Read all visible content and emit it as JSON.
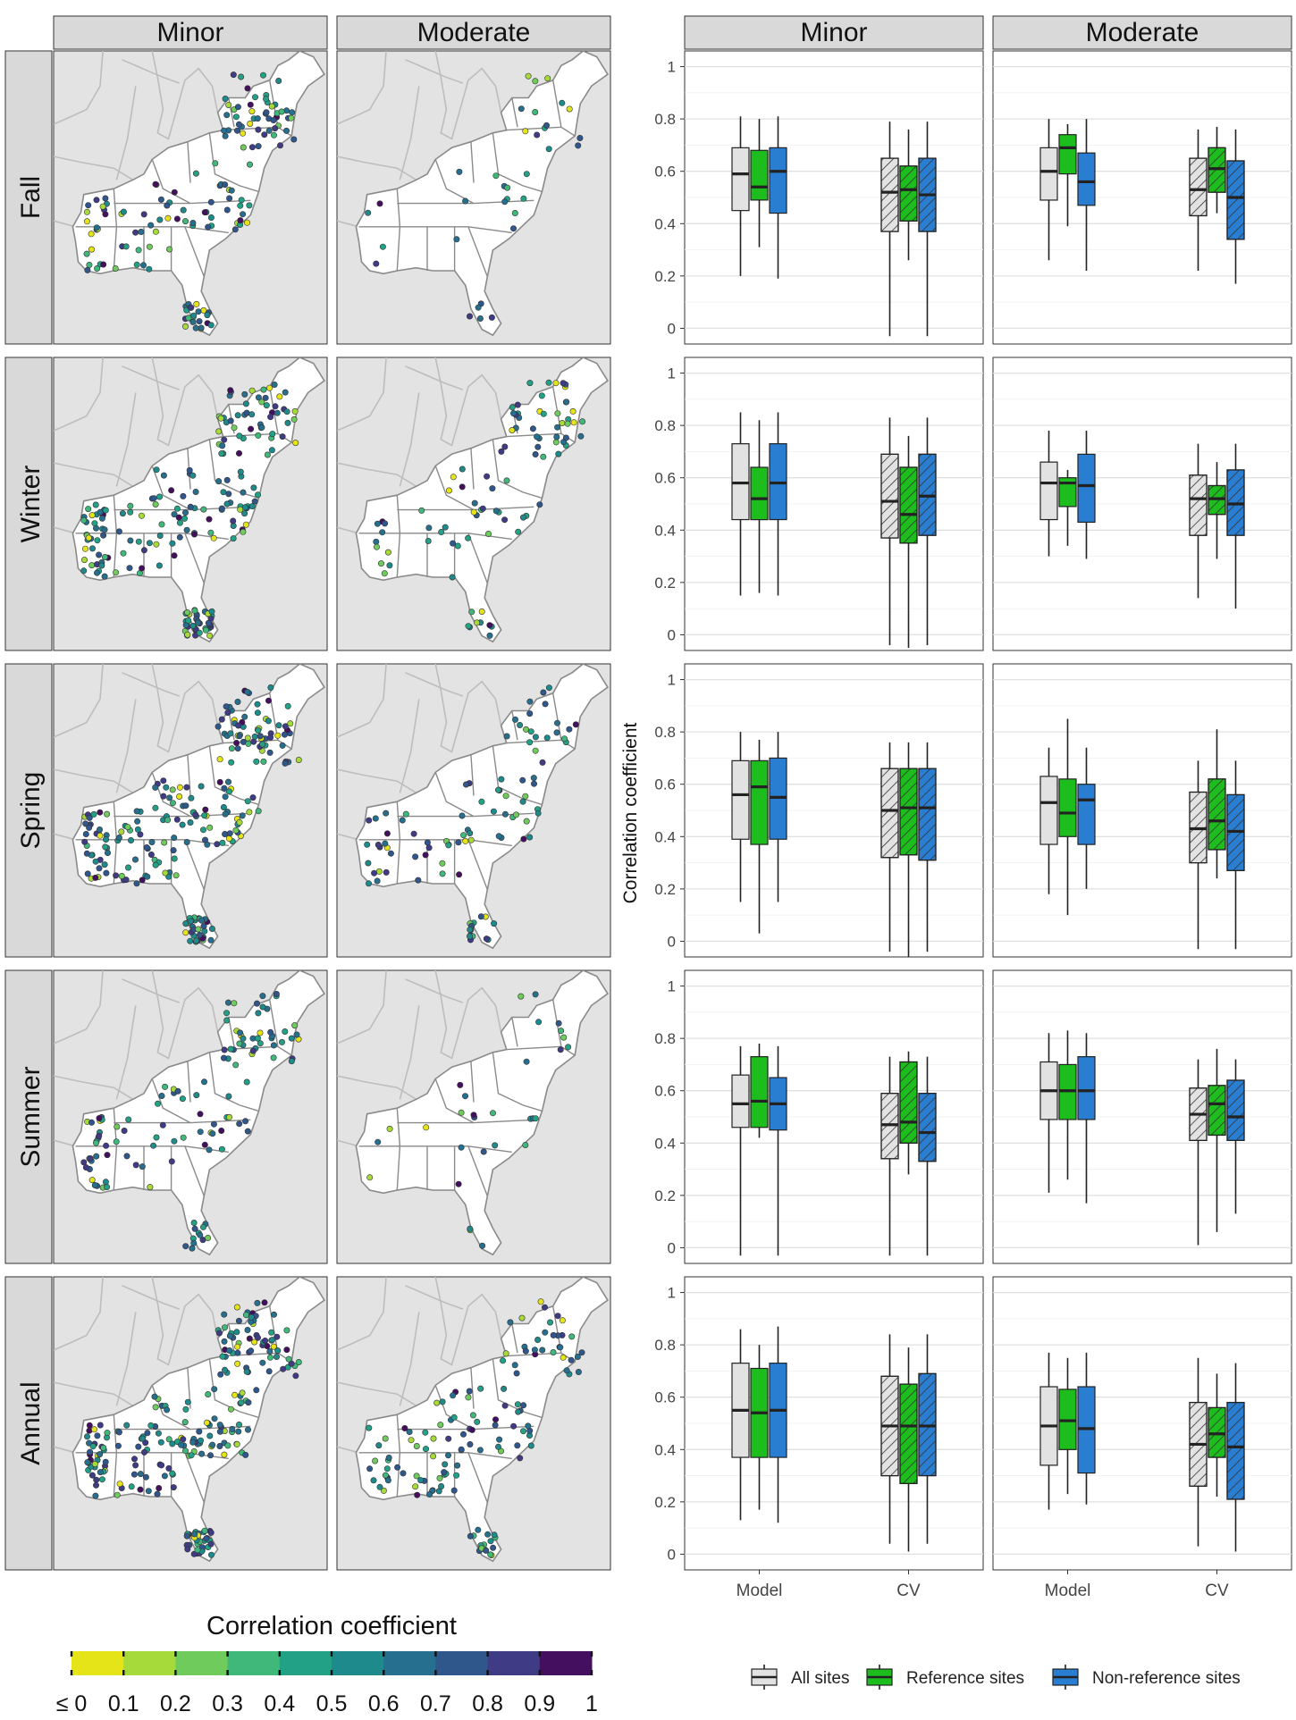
{
  "columns_map": [
    "Minor",
    "Moderate"
  ],
  "columns_box": [
    "Minor",
    "Moderate"
  ],
  "rows": [
    "Fall",
    "Winter",
    "Spring",
    "Summer",
    "Annual"
  ],
  "map_legend": {
    "title": "Correlation coefficient",
    "tick_labels": [
      "≤ 0",
      "0.1",
      "0.2",
      "0.3",
      "0.4",
      "0.5",
      "0.6",
      "0.7",
      "0.8",
      "0.9",
      "1"
    ],
    "colors": [
      "#e4e418",
      "#a6da3a",
      "#6fcb5b",
      "#3fb87a",
      "#22a186",
      "#1f8a8c",
      "#276f8e",
      "#30578c",
      "#3f3b85",
      "#440f5e"
    ]
  },
  "box_legend": {
    "items": [
      {
        "key": "all",
        "label": "All sites",
        "color": "#e2e2e2"
      },
      {
        "key": "ref",
        "label": "Reference sites",
        "color": "#1ebd1e"
      },
      {
        "key": "nonref",
        "label": "Non-reference sites",
        "color": "#2a7ed2"
      }
    ]
  },
  "colors": {
    "strip_bg": "#d9d9d9",
    "map_bg": "#e3e3e3",
    "state_fill": "#ffffff",
    "border": "#8a8a8a",
    "grid": "#e6e6e6"
  },
  "chart_data": {
    "type": "box",
    "ylabel": "Correlation coefficient",
    "ylim": [
      -0.06,
      1.06
    ],
    "y_ticks": [
      0,
      0.2,
      0.4,
      0.6,
      0.8,
      1
    ],
    "y_tick_labels": [
      "0",
      "0.2",
      "0.4",
      "0.6",
      "0.8",
      "1"
    ],
    "categories": [
      "Model",
      "CV"
    ],
    "series": [
      "All sites",
      "Reference sites",
      "Non-reference sites"
    ],
    "cv_hatched": true,
    "panels": [
      {
        "row": "Fall",
        "col": "Minor",
        "boxes": {
          "Model": [
            [
              0.2,
              0.45,
              0.59,
              0.69,
              0.81
            ],
            [
              0.31,
              0.49,
              0.54,
              0.68,
              0.8
            ],
            [
              0.19,
              0.44,
              0.6,
              0.69,
              0.81
            ]
          ],
          "CV": [
            [
              -0.03,
              0.37,
              0.52,
              0.65,
              0.79
            ],
            [
              0.26,
              0.41,
              0.53,
              0.62,
              0.76
            ],
            [
              -0.03,
              0.37,
              0.51,
              0.65,
              0.79
            ]
          ]
        }
      },
      {
        "row": "Fall",
        "col": "Moderate",
        "boxes": {
          "Model": [
            [
              0.26,
              0.49,
              0.6,
              0.69,
              0.8
            ],
            [
              0.39,
              0.59,
              0.69,
              0.74,
              0.78
            ],
            [
              0.22,
              0.47,
              0.56,
              0.67,
              0.8
            ]
          ],
          "CV": [
            [
              0.22,
              0.43,
              0.53,
              0.65,
              0.76
            ],
            [
              0.44,
              0.52,
              0.61,
              0.69,
              0.77
            ],
            [
              0.17,
              0.34,
              0.5,
              0.64,
              0.76
            ]
          ]
        }
      },
      {
        "row": "Winter",
        "col": "Minor",
        "boxes": {
          "Model": [
            [
              0.15,
              0.44,
              0.58,
              0.73,
              0.85
            ],
            [
              0.16,
              0.44,
              0.52,
              0.64,
              0.82
            ],
            [
              0.15,
              0.44,
              0.58,
              0.73,
              0.85
            ]
          ],
          "CV": [
            [
              -0.04,
              0.37,
              0.51,
              0.69,
              0.83
            ],
            [
              -0.05,
              0.35,
              0.46,
              0.64,
              0.76
            ],
            [
              -0.04,
              0.38,
              0.53,
              0.69,
              0.83
            ]
          ]
        }
      },
      {
        "row": "Winter",
        "col": "Moderate",
        "boxes": {
          "Model": [
            [
              0.3,
              0.44,
              0.58,
              0.66,
              0.78
            ],
            [
              0.34,
              0.49,
              0.58,
              0.6,
              0.63
            ],
            [
              0.29,
              0.43,
              0.57,
              0.69,
              0.78
            ]
          ],
          "CV": [
            [
              0.14,
              0.38,
              0.52,
              0.61,
              0.73
            ],
            [
              0.29,
              0.46,
              0.52,
              0.57,
              0.66
            ],
            [
              0.1,
              0.38,
              0.5,
              0.63,
              0.73
            ]
          ]
        }
      },
      {
        "row": "Spring",
        "col": "Minor",
        "boxes": {
          "Model": [
            [
              0.15,
              0.39,
              0.56,
              0.69,
              0.8
            ],
            [
              0.03,
              0.37,
              0.59,
              0.69,
              0.77
            ],
            [
              0.15,
              0.39,
              0.55,
              0.7,
              0.8
            ]
          ],
          "CV": [
            [
              -0.04,
              0.32,
              0.5,
              0.66,
              0.76
            ],
            [
              -0.06,
              0.33,
              0.51,
              0.66,
              0.76
            ],
            [
              -0.04,
              0.31,
              0.51,
              0.66,
              0.76
            ]
          ]
        }
      },
      {
        "row": "Spring",
        "col": "Moderate",
        "boxes": {
          "Model": [
            [
              0.18,
              0.37,
              0.53,
              0.63,
              0.74
            ],
            [
              0.1,
              0.4,
              0.49,
              0.62,
              0.85
            ],
            [
              0.2,
              0.37,
              0.54,
              0.6,
              0.74
            ]
          ],
          "CV": [
            [
              -0.03,
              0.3,
              0.43,
              0.57,
              0.69
            ],
            [
              0.24,
              0.35,
              0.46,
              0.62,
              0.81
            ],
            [
              -0.03,
              0.27,
              0.42,
              0.56,
              0.69
            ]
          ]
        }
      },
      {
        "row": "Summer",
        "col": "Minor",
        "boxes": {
          "Model": [
            [
              -0.03,
              0.46,
              0.55,
              0.66,
              0.77
            ],
            [
              0.42,
              0.46,
              0.56,
              0.73,
              0.78
            ],
            [
              -0.03,
              0.45,
              0.55,
              0.65,
              0.77
            ]
          ],
          "CV": [
            [
              -0.03,
              0.34,
              0.47,
              0.59,
              0.73
            ],
            [
              0.28,
              0.4,
              0.48,
              0.71,
              0.75
            ],
            [
              -0.03,
              0.33,
              0.44,
              0.59,
              0.73
            ]
          ]
        }
      },
      {
        "row": "Summer",
        "col": "Moderate",
        "boxes": {
          "Model": [
            [
              0.21,
              0.49,
              0.6,
              0.71,
              0.82
            ],
            [
              0.26,
              0.49,
              0.6,
              0.7,
              0.83
            ],
            [
              0.17,
              0.49,
              0.6,
              0.73,
              0.82
            ]
          ],
          "CV": [
            [
              0.01,
              0.41,
              0.51,
              0.61,
              0.72
            ],
            [
              0.06,
              0.43,
              0.55,
              0.62,
              0.76
            ],
            [
              0.13,
              0.41,
              0.5,
              0.64,
              0.72
            ]
          ]
        }
      },
      {
        "row": "Annual",
        "col": "Minor",
        "boxes": {
          "Model": [
            [
              0.13,
              0.37,
              0.55,
              0.73,
              0.86
            ],
            [
              0.17,
              0.37,
              0.54,
              0.71,
              0.8
            ],
            [
              0.12,
              0.37,
              0.55,
              0.73,
              0.87
            ]
          ],
          "CV": [
            [
              0.04,
              0.3,
              0.49,
              0.68,
              0.84
            ],
            [
              0.01,
              0.27,
              0.49,
              0.65,
              0.79
            ],
            [
              0.04,
              0.3,
              0.49,
              0.69,
              0.84
            ]
          ]
        }
      },
      {
        "row": "Annual",
        "col": "Moderate",
        "boxes": {
          "Model": [
            [
              0.17,
              0.34,
              0.49,
              0.64,
              0.77
            ],
            [
              0.23,
              0.4,
              0.51,
              0.63,
              0.75
            ],
            [
              0.19,
              0.31,
              0.48,
              0.64,
              0.77
            ]
          ],
          "CV": [
            [
              0.03,
              0.26,
              0.42,
              0.58,
              0.75
            ],
            [
              0.22,
              0.37,
              0.46,
              0.56,
              0.69
            ],
            [
              0.01,
              0.21,
              0.41,
              0.58,
              0.73
            ]
          ]
        }
      }
    ]
  }
}
